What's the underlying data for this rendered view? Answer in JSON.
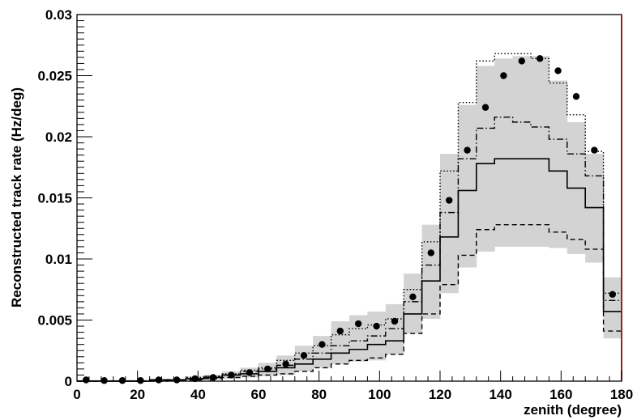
{
  "chart_data": {
    "type": "line",
    "title": "",
    "xlabel": "zenith (degree)",
    "ylabel": "Reconstructed track rate (Hz/deg)",
    "xlim": [
      0,
      180
    ],
    "ylim": [
      0,
      0.03
    ],
    "grid": false,
    "x_ticks": [
      "0",
      "20",
      "40",
      "60",
      "80",
      "100",
      "120",
      "140",
      "160",
      "180"
    ],
    "y_ticks": [
      "0",
      "0.005",
      "0.01",
      "0.015",
      "0.02",
      "0.025",
      "0.03"
    ],
    "bin_edges": [
      0,
      6,
      12,
      18,
      24,
      30,
      36,
      42,
      48,
      54,
      60,
      66,
      72,
      78,
      84,
      90,
      96,
      102,
      108,
      114,
      120,
      126,
      132,
      138,
      144,
      150,
      156,
      162,
      168,
      174,
      180
    ],
    "data_points": {
      "x": [
        3,
        9,
        15,
        21,
        27,
        33,
        39,
        45,
        51,
        57,
        63,
        69,
        75,
        81,
        87,
        93,
        99,
        105,
        111,
        117,
        123,
        129,
        135,
        141,
        147,
        153,
        159,
        165,
        171,
        177
      ],
      "y": [
        0.0001,
        5e-05,
        5e-05,
        5e-05,
        0.0001,
        0.0001,
        0.0002,
        0.0003,
        0.0005,
        0.0007,
        0.001,
        0.0014,
        0.0021,
        0.003,
        0.0041,
        0.0047,
        0.0045,
        0.0049,
        0.0069,
        0.0105,
        0.0148,
        0.0189,
        0.0224,
        0.025,
        0.0262,
        0.0264,
        0.0254,
        0.0233,
        0.0189,
        0.0071
      ]
    },
    "band": {
      "low": [
        0,
        0,
        0,
        0,
        0,
        0,
        0.0001,
        0.0001,
        0.0002,
        0.0003,
        0.0004,
        0.0005,
        0.0008,
        0.0011,
        0.0014,
        0.0016,
        0.0017,
        0.0022,
        0.0039,
        0.0051,
        0.0072,
        0.0093,
        0.0106,
        0.011,
        0.011,
        0.011,
        0.0109,
        0.0104,
        0.0097,
        0.0035
      ],
      "high": [
        0.0001,
        0.0001,
        0.0001,
        0.0001,
        0.0002,
        0.0002,
        0.0004,
        0.0005,
        0.0008,
        0.0011,
        0.0015,
        0.0021,
        0.0029,
        0.0037,
        0.0049,
        0.0054,
        0.0057,
        0.0063,
        0.0088,
        0.0128,
        0.0186,
        0.0226,
        0.0258,
        0.0264,
        0.0266,
        0.0266,
        0.0246,
        0.0212,
        0.0186,
        0.0085
      ]
    },
    "series": [
      {
        "style": "solid",
        "values": [
          0,
          0,
          0,
          0,
          0.0001,
          0.0001,
          0.0002,
          0.0003,
          0.0005,
          0.0006,
          0.0008,
          0.0011,
          0.0014,
          0.0018,
          0.0023,
          0.0026,
          0.003,
          0.0033,
          0.0055,
          0.0082,
          0.0118,
          0.0156,
          0.0178,
          0.0182,
          0.0182,
          0.0182,
          0.0172,
          0.0158,
          0.0142,
          0.0057
        ]
      },
      {
        "style": "dotted",
        "values": [
          0,
          0,
          0,
          0,
          0.0001,
          0.0001,
          0.0003,
          0.0004,
          0.0006,
          0.0009,
          0.0011,
          0.0017,
          0.0023,
          0.0029,
          0.0038,
          0.0043,
          0.0046,
          0.0051,
          0.0075,
          0.0114,
          0.0172,
          0.0228,
          0.0262,
          0.0268,
          0.0268,
          0.0264,
          0.0244,
          0.0218,
          0.0188,
          0.0072
        ]
      },
      {
        "style": "dashdot",
        "values": [
          0,
          0,
          0,
          0,
          0.0001,
          0.0001,
          0.0002,
          0.0004,
          0.0005,
          0.0008,
          0.001,
          0.0013,
          0.0018,
          0.0023,
          0.0029,
          0.0033,
          0.0037,
          0.0043,
          0.0065,
          0.0095,
          0.0138,
          0.0182,
          0.0207,
          0.0216,
          0.0212,
          0.0208,
          0.0198,
          0.0186,
          0.0168,
          0.0066
        ]
      },
      {
        "style": "dashed",
        "values": [
          0,
          0,
          0,
          0,
          0,
          0.0001,
          0.0001,
          0.0002,
          0.0003,
          0.0004,
          0.0005,
          0.0006,
          0.0008,
          0.0011,
          0.0014,
          0.0017,
          0.0019,
          0.0022,
          0.0039,
          0.0055,
          0.0079,
          0.0103,
          0.0124,
          0.0128,
          0.0128,
          0.0128,
          0.0122,
          0.0116,
          0.0108,
          0.0041
        ]
      }
    ],
    "colors": {
      "band": "#d3d3d3",
      "lines": "#000000",
      "right_frame": "#9c2020",
      "frame": "#000000"
    }
  }
}
